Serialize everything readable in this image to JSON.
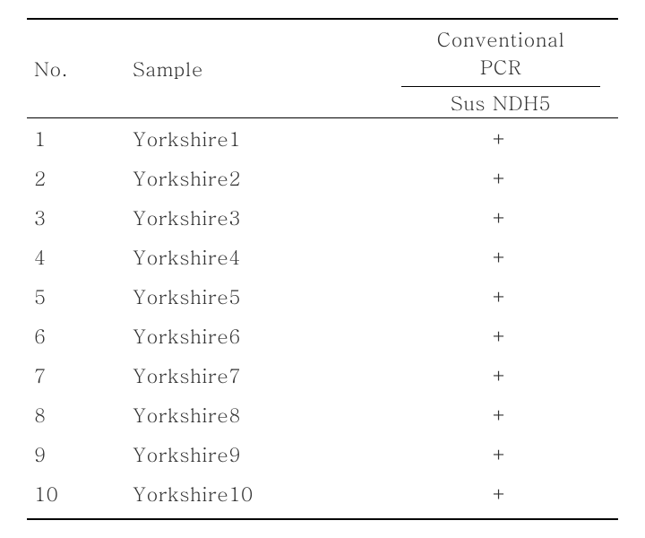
{
  "table": {
    "headers": {
      "no": "No.",
      "sample": "Sample",
      "pcr_group": "Conventional  PCR",
      "pcr_sub": "Sus NDH5"
    },
    "rows": [
      {
        "no": "1",
        "sample": "Yorkshire1",
        "pcr": "+"
      },
      {
        "no": "2",
        "sample": "Yorkshire2",
        "pcr": "+"
      },
      {
        "no": "3",
        "sample": "Yorkshire3",
        "pcr": "+"
      },
      {
        "no": "4",
        "sample": "Yorkshire4",
        "pcr": "+"
      },
      {
        "no": "5",
        "sample": "Yorkshire5",
        "pcr": "+"
      },
      {
        "no": "6",
        "sample": "Yorkshire6",
        "pcr": "+"
      },
      {
        "no": "7",
        "sample": "Yorkshire7",
        "pcr": "+"
      },
      {
        "no": "8",
        "sample": "Yorkshire8",
        "pcr": "+"
      },
      {
        "no": "9",
        "sample": "Yorkshire9",
        "pcr": "+"
      },
      {
        "no": "10",
        "sample": "Yorkshire10",
        "pcr": "+"
      }
    ],
    "colors": {
      "text": "#333333",
      "border": "#000000",
      "background": "#ffffff"
    },
    "font_size_pt": 16
  }
}
